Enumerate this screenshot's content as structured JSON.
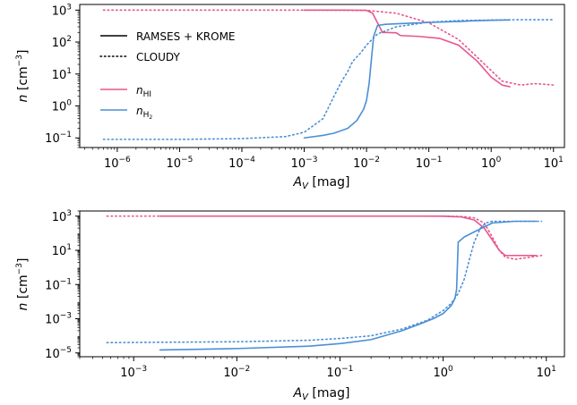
{
  "chart_data": [
    {
      "type": "line",
      "xlabel": "A_V [mag]",
      "ylabel": "n [cm^-3]",
      "xscale": "log",
      "yscale": "log",
      "xlim": [
        2.5e-07,
        15
      ],
      "ylim": [
        0.05,
        1500
      ],
      "xticks": [
        1e-06,
        1e-05,
        0.0001,
        0.001,
        0.01,
        0.1,
        1.0,
        10.0
      ],
      "yticks": [
        0.1,
        1,
        10,
        100,
        1000
      ],
      "legend_position": "upper-left",
      "legend": {
        "linestyles": [
          {
            "label": "RAMSES + KROME",
            "style": "solid"
          },
          {
            "label": "CLOUDY",
            "style": "dotted"
          }
        ],
        "species": [
          {
            "label": "n_HI",
            "color": "#e8558e"
          },
          {
            "label": "n_H2",
            "color": "#4a8fd6"
          }
        ]
      },
      "series": [
        {
          "name": "n_HI",
          "model": "RAMSES + KROME",
          "style": "solid",
          "color": "#e8558e",
          "x": [
            0.001,
            0.003,
            0.006,
            0.01,
            0.0125,
            0.015,
            0.018,
            0.02,
            0.03,
            0.035,
            0.07,
            0.15,
            0.3,
            0.6,
            1.0,
            1.5,
            2.0
          ],
          "y": [
            1000,
            1000,
            995,
            980,
            800,
            400,
            200,
            200,
            195,
            160,
            150,
            130,
            80,
            25,
            8,
            4.5,
            4
          ]
        },
        {
          "name": "n_HI",
          "model": "CLOUDY",
          "style": "dotted",
          "color": "#e8558e",
          "x": [
            6e-07,
            1e-05,
            0.0001,
            0.001,
            0.01,
            0.03,
            0.1,
            0.3,
            0.7,
            1.5,
            3,
            5,
            7,
            10
          ],
          "y": [
            1000,
            1000,
            1000,
            1000,
            980,
            800,
            400,
            120,
            25,
            6,
            4.5,
            5,
            4.8,
            4.5
          ]
        },
        {
          "name": "n_H2",
          "model": "RAMSES + KROME",
          "style": "solid",
          "color": "#4a8fd6",
          "x": [
            0.001,
            0.002,
            0.003,
            0.005,
            0.007,
            0.009,
            0.01,
            0.011,
            0.012,
            0.013,
            0.015,
            0.02,
            0.05,
            0.1,
            0.3,
            0.5,
            1.0,
            2.0
          ],
          "y": [
            0.1,
            0.12,
            0.14,
            0.2,
            0.35,
            0.8,
            1.5,
            5,
            30,
            150,
            330,
            360,
            390,
            410,
            440,
            460,
            480,
            490
          ]
        },
        {
          "name": "n_H2",
          "model": "CLOUDY",
          "style": "dotted",
          "color": "#4a8fd6",
          "x": [
            6e-07,
            1e-05,
            0.0001,
            0.0005,
            0.001,
            0.002,
            0.003,
            0.004,
            0.005,
            0.006,
            0.008,
            0.01,
            0.015,
            0.03,
            0.1,
            0.3,
            1,
            3,
            10
          ],
          "y": [
            0.09,
            0.09,
            0.095,
            0.11,
            0.15,
            0.4,
            2,
            6,
            12,
            25,
            45,
            80,
            180,
            300,
            420,
            470,
            490,
            500,
            500
          ]
        }
      ]
    },
    {
      "type": "line",
      "xlabel": "A_V [mag]",
      "ylabel": "n [cm^-3]",
      "xscale": "log",
      "yscale": "log",
      "xlim": [
        0.0003,
        15
      ],
      "ylim": [
        6e-06,
        2000
      ],
      "xticks": [
        0.001,
        0.01,
        0.1,
        1.0,
        10.0
      ],
      "yticks": [
        1e-05,
        0.001,
        0.1,
        10,
        1000
      ],
      "series": [
        {
          "name": "n_HI",
          "model": "RAMSES + KROME",
          "style": "solid",
          "color": "#e8558e",
          "x": [
            0.0018,
            0.01,
            0.1,
            0.5,
            1.0,
            1.5,
            2.0,
            2.5,
            3.0,
            3.5,
            4.0,
            5.0,
            8.0
          ],
          "y": [
            1000,
            1000,
            1000,
            1000,
            990,
            900,
            600,
            200,
            40,
            10,
            5,
            5,
            5
          ]
        },
        {
          "name": "n_HI",
          "model": "CLOUDY",
          "style": "dotted",
          "color": "#e8558e",
          "x": [
            0.00055,
            0.01,
            0.1,
            0.5,
            1.0,
            1.5,
            2.0,
            2.5,
            3.0,
            3.5,
            4.0,
            5.0,
            6.0,
            7.0,
            8.0,
            9.0
          ],
          "y": [
            1000,
            1000,
            1000,
            1000,
            1000,
            950,
            800,
            400,
            60,
            10,
            4,
            3,
            3.5,
            4,
            4.5,
            5
          ]
        },
        {
          "name": "n_H2",
          "model": "RAMSES + KROME",
          "style": "solid",
          "color": "#4a8fd6",
          "x": [
            0.0018,
            0.01,
            0.05,
            0.1,
            0.2,
            0.4,
            0.6,
            0.8,
            1.0,
            1.1,
            1.2,
            1.3,
            1.35,
            1.4,
            1.6,
            2.0,
            3.0,
            5.0,
            8.0
          ],
          "y": [
            1.5e-05,
            1.8e-05,
            2.5e-05,
            3.5e-05,
            6e-05,
            0.0002,
            0.0005,
            0.001,
            0.002,
            0.0035,
            0.006,
            0.015,
            0.05,
            30,
            60,
            120,
            400,
            500,
            500
          ]
        },
        {
          "name": "n_H2",
          "model": "CLOUDY",
          "style": "dotted",
          "color": "#4a8fd6",
          "x": [
            0.00055,
            0.01,
            0.05,
            0.1,
            0.2,
            0.4,
            0.7,
            1.0,
            1.2,
            1.4,
            1.6,
            1.8,
            2.0,
            2.3,
            2.6,
            3.0,
            4.0,
            6.0,
            9.0
          ],
          "y": [
            4e-05,
            4.5e-05,
            5.5e-05,
            7e-05,
            0.0001,
            0.00025,
            0.0008,
            0.003,
            0.008,
            0.03,
            0.2,
            3,
            30,
            200,
            400,
            500,
            500,
            500,
            500
          ]
        }
      ]
    }
  ]
}
